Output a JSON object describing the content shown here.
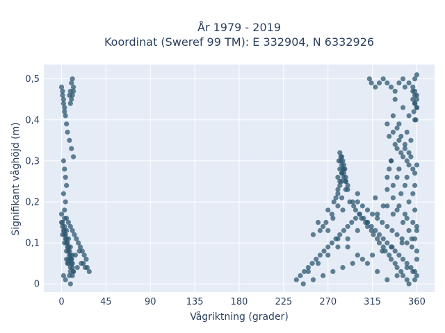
{
  "chart_data": {
    "type": "scatter",
    "title": "År 1979 - 2019",
    "subtitle": "Koordinat (Sweref 99 TM): E 332904, N 6332926",
    "xlabel": "Vågriktning (grader)",
    "ylabel": "Signifikant våghöjd (m)",
    "xlim": [
      -18,
      378
    ],
    "ylim": [
      -0.02,
      0.535
    ],
    "xticks": [
      0,
      45,
      90,
      135,
      180,
      225,
      270,
      315,
      360
    ],
    "xtick_labels": [
      "0",
      "45",
      "90",
      "135",
      "180",
      "225",
      "270",
      "315",
      "360"
    ],
    "yticks": [
      0,
      0.1,
      0.2,
      0.3,
      0.4,
      0.5
    ],
    "ytick_labels": [
      "0",
      "0,1",
      "0,2",
      "0,3",
      "0,4",
      "0,5"
    ],
    "grid": true,
    "colors": {
      "marker": "#2f5870",
      "plot_bg": "#e5ecf6",
      "grid": "#ffffff",
      "text": "#2a3f5f"
    },
    "series": [
      {
        "x": [
          0,
          1,
          2,
          3,
          4,
          5,
          6,
          7,
          8,
          9,
          10,
          11,
          12,
          3,
          5,
          7,
          9,
          11,
          13,
          15,
          17,
          19,
          21,
          23,
          25,
          6,
          10,
          14,
          18,
          22,
          26,
          8,
          12,
          16,
          20,
          24,
          28,
          4,
          9,
          0,
          1,
          2,
          3,
          4,
          5,
          6,
          8,
          10,
          12,
          2,
          3,
          4,
          5,
          2,
          4,
          3,
          0,
          1,
          2,
          3,
          9,
          10,
          11,
          12,
          8,
          10,
          12,
          9,
          11,
          1,
          3,
          5,
          7,
          9,
          11,
          5,
          7,
          9,
          11,
          3,
          5,
          7,
          9,
          2,
          4,
          6,
          8,
          10,
          1,
          3,
          5,
          7,
          9,
          11
        ],
        "y": [
          0.15,
          0.14,
          0.13,
          0.12,
          0.11,
          0.1,
          0.09,
          0.08,
          0.07,
          0.06,
          0.05,
          0.04,
          0.03,
          0.16,
          0.16,
          0.15,
          0.14,
          0.13,
          0.12,
          0.11,
          0.1,
          0.09,
          0.08,
          0.07,
          0.06,
          0.05,
          0.06,
          0.07,
          0.08,
          0.05,
          0.04,
          0.02,
          0.03,
          0.04,
          0.05,
          0.04,
          0.03,
          0.01,
          0.0,
          0.48,
          0.47,
          0.45,
          0.43,
          0.41,
          0.39,
          0.37,
          0.35,
          0.33,
          0.31,
          0.3,
          0.28,
          0.26,
          0.24,
          0.22,
          0.2,
          0.18,
          0.17,
          0.46,
          0.44,
          0.42,
          0.47,
          0.49,
          0.5,
          0.48,
          0.46,
          0.45,
          0.47,
          0.44,
          0.46,
          0.12,
          0.1,
          0.08,
          0.06,
          0.04,
          0.02,
          0.13,
          0.11,
          0.09,
          0.07,
          0.14,
          0.06,
          0.05,
          0.03,
          0.02,
          0.12,
          0.1,
          0.08,
          0.06,
          0.15,
          0.13,
          0.11,
          0.09,
          0.07,
          0.05
        ]
      },
      {
        "x": [
          238,
          242,
          246,
          250,
          254,
          258,
          262,
          266,
          270,
          274,
          278,
          282,
          286,
          290,
          294,
          298,
          302,
          306,
          310,
          314,
          318,
          322,
          326,
          330,
          334,
          338,
          342,
          346,
          350,
          354,
          358,
          360,
          245,
          255,
          265,
          275,
          285,
          295,
          305,
          315,
          325,
          335,
          345,
          355,
          250,
          260,
          270,
          280,
          290,
          300,
          310,
          320,
          330,
          340,
          350,
          360,
          255,
          265,
          275,
          285,
          295,
          305,
          315,
          325,
          335,
          345,
          355,
          260,
          270,
          280,
          290,
          300,
          310,
          320,
          330,
          340,
          350,
          360,
          262,
          268,
          274,
          280,
          284,
          288,
          292,
          298,
          304,
          310,
          316,
          322,
          328,
          334,
          340,
          346,
          352,
          358,
          270,
          276,
          280,
          282,
          284,
          286,
          288,
          290,
          296,
          302,
          308,
          314,
          320,
          326,
          332,
          338,
          344,
          350,
          356,
          278,
          280,
          282,
          284,
          286,
          288,
          290,
          300,
          310,
          320,
          330,
          340,
          350,
          360,
          280,
          282,
          284,
          286,
          288,
          300,
          318,
          326,
          336,
          346,
          352,
          358,
          281,
          283,
          285,
          287,
          330,
          336,
          342,
          348,
          356,
          360,
          282,
          284,
          286,
          330,
          336,
          344,
          352,
          358,
          283,
          285,
          332,
          340,
          348,
          356,
          284,
          334,
          342,
          350,
          358,
          312,
          314,
          318,
          322,
          326,
          330,
          334,
          338,
          342,
          346,
          348,
          352,
          356,
          358,
          360,
          358,
          360,
          356,
          358,
          360,
          357,
          359,
          358,
          360,
          356,
          358,
          360,
          340,
          344,
          348,
          352,
          336,
          342,
          350,
          354,
          338,
          346,
          352,
          358,
          334,
          340,
          346,
          352,
          358,
          332,
          338,
          344,
          350,
          356,
          330,
          336,
          342,
          348,
          354,
          360
        ],
        "y": [
          0.01,
          0.02,
          0.03,
          0.04,
          0.05,
          0.06,
          0.07,
          0.08,
          0.09,
          0.1,
          0.11,
          0.12,
          0.13,
          0.14,
          0.15,
          0.16,
          0.17,
          0.16,
          0.15,
          0.14,
          0.13,
          0.12,
          0.11,
          0.1,
          0.09,
          0.08,
          0.07,
          0.06,
          0.05,
          0.04,
          0.03,
          0.02,
          0.0,
          0.01,
          0.02,
          0.03,
          0.04,
          0.05,
          0.06,
          0.07,
          0.08,
          0.09,
          0.1,
          0.11,
          0.03,
          0.05,
          0.07,
          0.09,
          0.11,
          0.13,
          0.15,
          0.17,
          0.19,
          0.18,
          0.16,
          0.14,
          0.12,
          0.14,
          0.16,
          0.18,
          0.2,
          0.19,
          0.17,
          0.15,
          0.13,
          0.11,
          0.09,
          0.15,
          0.13,
          0.11,
          0.09,
          0.07,
          0.05,
          0.03,
          0.01,
          0.02,
          0.04,
          0.06,
          0.13,
          0.15,
          0.17,
          0.19,
          0.21,
          0.23,
          0.2,
          0.18,
          0.16,
          0.14,
          0.12,
          0.1,
          0.08,
          0.06,
          0.04,
          0.02,
          0.0,
          0.01,
          0.18,
          0.2,
          0.22,
          0.24,
          0.25,
          0.26,
          0.25,
          0.23,
          0.19,
          0.17,
          0.15,
          0.13,
          0.11,
          0.09,
          0.07,
          0.05,
          0.03,
          0.01,
          0.03,
          0.21,
          0.23,
          0.25,
          0.27,
          0.28,
          0.26,
          0.24,
          0.2,
          0.18,
          0.16,
          0.14,
          0.12,
          0.1,
          0.08,
          0.26,
          0.28,
          0.29,
          0.27,
          0.25,
          0.22,
          0.21,
          0.19,
          0.17,
          0.15,
          0.13,
          0.11,
          0.3,
          0.31,
          0.3,
          0.28,
          0.23,
          0.21,
          0.19,
          0.17,
          0.15,
          0.13,
          0.32,
          0.31,
          0.29,
          0.26,
          0.24,
          0.22,
          0.2,
          0.18,
          0.3,
          0.28,
          0.28,
          0.26,
          0.24,
          0.22,
          0.27,
          0.3,
          0.28,
          0.26,
          0.24,
          0.5,
          0.49,
          0.48,
          0.49,
          0.5,
          0.49,
          0.48,
          0.47,
          0.49,
          0.5,
          0.48,
          0.49,
          0.47,
          0.46,
          0.45,
          0.44,
          0.43,
          0.48,
          0.5,
          0.51,
          0.42,
          0.4,
          0.47,
          0.46,
          0.45,
          0.44,
          0.43,
          0.38,
          0.36,
          0.34,
          0.32,
          0.41,
          0.39,
          0.37,
          0.35,
          0.45,
          0.43,
          0.41,
          0.4,
          0.3,
          0.33,
          0.31,
          0.29,
          0.27,
          0.36,
          0.34,
          0.32,
          0.3,
          0.28,
          0.39,
          0.37,
          0.35,
          0.33,
          0.31,
          0.29
        ]
      }
    ]
  }
}
